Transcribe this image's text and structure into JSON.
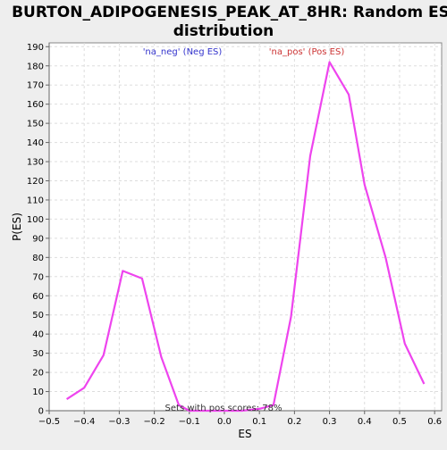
{
  "chart_data": {
    "type": "line",
    "title_line1": "BURTON_ADIPOGENESIS_PEAK_AT_8HR: Random ES",
    "title_line2": "distribution",
    "xlabel": "ES",
    "ylabel": "P(ES)",
    "xlim": [
      -0.5,
      0.62
    ],
    "ylim": [
      0,
      192
    ],
    "xticks": [
      -0.5,
      -0.4,
      -0.3,
      -0.2,
      -0.1,
      0.0,
      0.1,
      0.2,
      0.3,
      0.4,
      0.5,
      0.6
    ],
    "xtick_labels": [
      "−0.5",
      "−0.4",
      "−0.3",
      "−0.2",
      "−0.1",
      "0.0",
      "0.1",
      "0.2",
      "0.3",
      "0.4",
      "0.5",
      "0.6"
    ],
    "yticks": [
      0,
      10,
      20,
      30,
      40,
      50,
      60,
      70,
      80,
      90,
      100,
      110,
      120,
      130,
      140,
      150,
      160,
      170,
      180,
      190
    ],
    "grid": true,
    "legend": {
      "neg_label": "'na_neg' (Neg ES)",
      "pos_label": "'na_pos' (Pos ES)"
    },
    "annotation": "Sets with pos scores: 78%",
    "series": [
      {
        "color": "#ee44ee",
        "x": [
          -0.45,
          -0.4,
          -0.345,
          -0.29,
          -0.235,
          -0.18,
          -0.13,
          -0.1,
          -0.05,
          0.0,
          0.05,
          0.1,
          0.14,
          0.19,
          0.245,
          0.3,
          0.355,
          0.4,
          0.46,
          0.515,
          0.57
        ],
        "y": [
          6,
          12,
          29,
          73,
          69,
          28,
          3,
          0,
          0,
          0,
          0,
          1,
          3,
          49,
          133,
          182,
          165,
          118,
          80,
          35,
          14
        ]
      }
    ]
  }
}
